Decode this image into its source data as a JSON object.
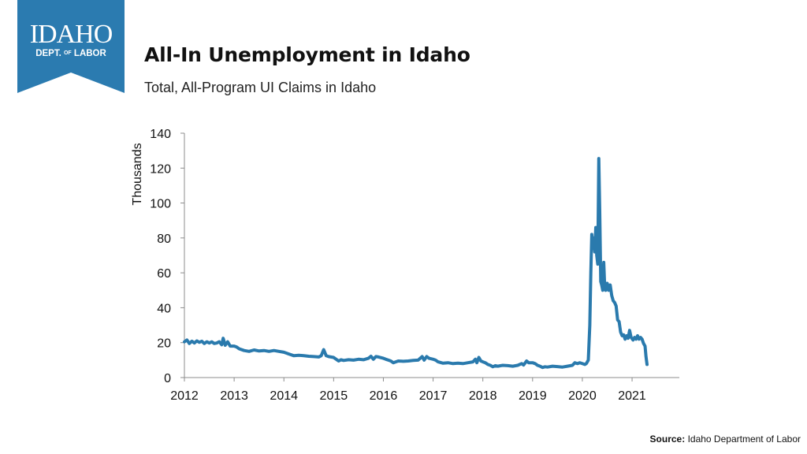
{
  "logo": {
    "name": "IDAHO",
    "subname_left": "DEPT.",
    "subname_of": "OF",
    "subname_right": "LABOR",
    "color": "#2b7bb0"
  },
  "header": {
    "title": "All-In Unemployment in Idaho",
    "subtitle": "Total, All-Program UI Claims in Idaho"
  },
  "source": {
    "label": "Source:",
    "text": "Idaho Department of Labor"
  },
  "chart_data": {
    "type": "line",
    "title": "All-In Unemployment in Idaho",
    "subtitle": "Total, All-Program UI Claims in Idaho",
    "xlabel": "",
    "ylabel": "Thousands",
    "ylim": [
      0,
      140
    ],
    "yticks": [
      0,
      20,
      40,
      60,
      80,
      100,
      120,
      140
    ],
    "xlim": [
      2012,
      2021.95
    ],
    "xticks": [
      "2012",
      "2013",
      "2014",
      "2015",
      "2016",
      "2017",
      "2018",
      "2019",
      "2020",
      "2021"
    ],
    "grid": false,
    "line_color": "#2a7aad",
    "series": [
      {
        "name": "",
        "points": [
          [
            2012.0,
            20.5
          ],
          [
            2012.05,
            21.5
          ],
          [
            2012.1,
            19.5
          ],
          [
            2012.15,
            20.8
          ],
          [
            2012.2,
            19.8
          ],
          [
            2012.25,
            21.0
          ],
          [
            2012.3,
            20.2
          ],
          [
            2012.35,
            20.8
          ],
          [
            2012.4,
            19.5
          ],
          [
            2012.45,
            20.5
          ],
          [
            2012.5,
            19.8
          ],
          [
            2012.55,
            20.5
          ],
          [
            2012.6,
            19.5
          ],
          [
            2012.65,
            19.8
          ],
          [
            2012.7,
            20.5
          ],
          [
            2012.75,
            18.8
          ],
          [
            2012.78,
            22.5
          ],
          [
            2012.82,
            18.5
          ],
          [
            2012.87,
            20.5
          ],
          [
            2012.92,
            18.0
          ],
          [
            2013.0,
            18.0
          ],
          [
            2013.05,
            17.5
          ],
          [
            2013.1,
            16.5
          ],
          [
            2013.2,
            15.5
          ],
          [
            2013.3,
            15.0
          ],
          [
            2013.4,
            15.8
          ],
          [
            2013.5,
            15.2
          ],
          [
            2013.6,
            15.5
          ],
          [
            2013.7,
            15.0
          ],
          [
            2013.8,
            15.5
          ],
          [
            2013.9,
            15.0
          ],
          [
            2014.0,
            14.5
          ],
          [
            2014.05,
            14.0
          ],
          [
            2014.1,
            13.5
          ],
          [
            2014.2,
            12.5
          ],
          [
            2014.3,
            12.8
          ],
          [
            2014.4,
            12.5
          ],
          [
            2014.5,
            12.2
          ],
          [
            2014.6,
            12.0
          ],
          [
            2014.7,
            11.8
          ],
          [
            2014.75,
            12.5
          ],
          [
            2014.8,
            16.0
          ],
          [
            2014.85,
            12.5
          ],
          [
            2014.9,
            12.0
          ],
          [
            2015.0,
            11.5
          ],
          [
            2015.05,
            10.5
          ],
          [
            2015.1,
            9.5
          ],
          [
            2015.15,
            10.2
          ],
          [
            2015.2,
            9.8
          ],
          [
            2015.3,
            10.2
          ],
          [
            2015.4,
            10.0
          ],
          [
            2015.5,
            10.5
          ],
          [
            2015.6,
            10.2
          ],
          [
            2015.7,
            11.0
          ],
          [
            2015.75,
            12.2
          ],
          [
            2015.8,
            10.5
          ],
          [
            2015.85,
            12.0
          ],
          [
            2015.9,
            11.8
          ],
          [
            2016.0,
            11.0
          ],
          [
            2016.05,
            10.5
          ],
          [
            2016.1,
            10.0
          ],
          [
            2016.15,
            9.5
          ],
          [
            2016.2,
            8.5
          ],
          [
            2016.25,
            9.0
          ],
          [
            2016.3,
            9.5
          ],
          [
            2016.4,
            9.3
          ],
          [
            2016.5,
            9.5
          ],
          [
            2016.6,
            9.8
          ],
          [
            2016.7,
            10.0
          ],
          [
            2016.78,
            12.0
          ],
          [
            2016.82,
            10.0
          ],
          [
            2016.87,
            12.0
          ],
          [
            2016.92,
            11.0
          ],
          [
            2017.0,
            10.5
          ],
          [
            2017.05,
            10.0
          ],
          [
            2017.1,
            9.0
          ],
          [
            2017.2,
            8.2
          ],
          [
            2017.3,
            8.5
          ],
          [
            2017.4,
            8.0
          ],
          [
            2017.5,
            8.2
          ],
          [
            2017.6,
            8.0
          ],
          [
            2017.7,
            8.5
          ],
          [
            2017.8,
            9.0
          ],
          [
            2017.85,
            10.5
          ],
          [
            2017.88,
            8.5
          ],
          [
            2017.92,
            11.5
          ],
          [
            2017.96,
            9.5
          ],
          [
            2018.0,
            9.0
          ],
          [
            2018.05,
            8.5
          ],
          [
            2018.1,
            7.5
          ],
          [
            2018.15,
            7.0
          ],
          [
            2018.2,
            6.2
          ],
          [
            2018.25,
            6.8
          ],
          [
            2018.3,
            6.5
          ],
          [
            2018.4,
            7.0
          ],
          [
            2018.5,
            6.8
          ],
          [
            2018.6,
            6.5
          ],
          [
            2018.7,
            7.0
          ],
          [
            2018.78,
            8.0
          ],
          [
            2018.82,
            7.2
          ],
          [
            2018.88,
            9.5
          ],
          [
            2018.92,
            8.5
          ],
          [
            2019.0,
            8.5
          ],
          [
            2019.05,
            8.0
          ],
          [
            2019.1,
            7.0
          ],
          [
            2019.15,
            6.5
          ],
          [
            2019.2,
            5.8
          ],
          [
            2019.25,
            6.2
          ],
          [
            2019.3,
            6.0
          ],
          [
            2019.4,
            6.5
          ],
          [
            2019.5,
            6.3
          ],
          [
            2019.6,
            6.0
          ],
          [
            2019.7,
            6.5
          ],
          [
            2019.8,
            7.0
          ],
          [
            2019.85,
            8.5
          ],
          [
            2019.9,
            8.0
          ],
          [
            2019.95,
            8.5
          ],
          [
            2020.0,
            8.0
          ],
          [
            2020.05,
            7.5
          ],
          [
            2020.08,
            8.0
          ],
          [
            2020.12,
            10.0
          ],
          [
            2020.15,
            30.0
          ],
          [
            2020.17,
            60.0
          ],
          [
            2020.19,
            82.0
          ],
          [
            2020.21,
            74.0
          ],
          [
            2020.23,
            80.0
          ],
          [
            2020.25,
            72.0
          ],
          [
            2020.27,
            86.0
          ],
          [
            2020.29,
            70.0
          ],
          [
            2020.31,
            65.0
          ],
          [
            2020.33,
            125.5
          ],
          [
            2020.35,
            95.0
          ],
          [
            2020.37,
            55.0
          ],
          [
            2020.39,
            53.0
          ],
          [
            2020.41,
            50.0
          ],
          [
            2020.43,
            66.0
          ],
          [
            2020.45,
            52.0
          ],
          [
            2020.47,
            50.0
          ],
          [
            2020.5,
            54.0
          ],
          [
            2020.53,
            50.0
          ],
          [
            2020.56,
            53.0
          ],
          [
            2020.59,
            47.0
          ],
          [
            2020.62,
            44.0
          ],
          [
            2020.65,
            43.0
          ],
          [
            2020.68,
            41.0
          ],
          [
            2020.71,
            33.0
          ],
          [
            2020.74,
            32.0
          ],
          [
            2020.77,
            26.0
          ],
          [
            2020.8,
            24.0
          ],
          [
            2020.83,
            24.5
          ],
          [
            2020.86,
            22.0
          ],
          [
            2020.89,
            24.0
          ],
          [
            2020.92,
            22.5
          ],
          [
            2020.95,
            27.0
          ],
          [
            2020.98,
            23.0
          ],
          [
            2021.02,
            21.5
          ],
          [
            2021.05,
            23.0
          ],
          [
            2021.08,
            22.0
          ],
          [
            2021.11,
            24.0
          ],
          [
            2021.14,
            22.0
          ],
          [
            2021.17,
            23.0
          ],
          [
            2021.2,
            22.0
          ],
          [
            2021.23,
            19.5
          ],
          [
            2021.26,
            18.0
          ],
          [
            2021.28,
            12.0
          ],
          [
            2021.3,
            7.5
          ]
        ]
      }
    ]
  }
}
